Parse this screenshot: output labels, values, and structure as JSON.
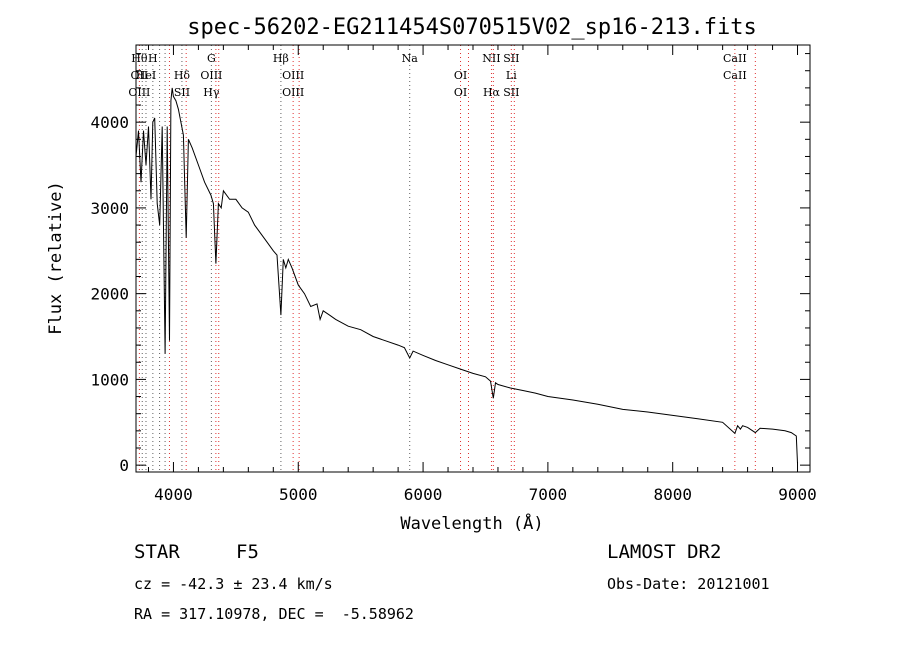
{
  "title": "spec-56202-EG211454S070515V02_sp16-213.fits",
  "footer": {
    "class_label": "STAR",
    "subclass": "F5",
    "survey": "LAMOST DR2",
    "cz": "cz = -42.3 ± 23.4 km/s",
    "obs_date": "Obs-Date: 20121001",
    "radec": "RA = 317.10978, DEC =  -5.58962"
  },
  "chart_data": {
    "type": "line",
    "title": "spec-56202-EG211454S070515V02_sp16-213.fits",
    "xlabel": "Wavelength (Å)",
    "ylabel": "Flux (relative)",
    "xlim": [
      3700,
      9100
    ],
    "ylim": [
      -80,
      4900
    ],
    "xticks": [
      4000,
      5000,
      6000,
      7000,
      8000,
      9000
    ],
    "yticks": [
      0,
      1000,
      2000,
      3000,
      4000
    ],
    "grid": false,
    "legend": "none",
    "colors": {
      "spectrum": "#000000",
      "emission_lines": "#e03030",
      "absorption_lines": "#606060"
    },
    "spectrum": {
      "x": [
        3700,
        3720,
        3740,
        3760,
        3780,
        3800,
        3820,
        3835,
        3850,
        3870,
        3890,
        3910,
        3933,
        3950,
        3968,
        3980,
        3990,
        4000,
        4020,
        4040,
        4060,
        4080,
        4102,
        4120,
        4150,
        4200,
        4250,
        4300,
        4320,
        4340,
        4360,
        4383,
        4400,
        4450,
        4500,
        4550,
        4600,
        4650,
        4700,
        4750,
        4800,
        4830,
        4861,
        4880,
        4900,
        4920,
        4950,
        5000,
        5050,
        5100,
        5150,
        5175,
        5200,
        5250,
        5300,
        5400,
        5500,
        5600,
        5700,
        5800,
        5850,
        5893,
        5920,
        6000,
        6100,
        6200,
        6300,
        6400,
        6500,
        6540,
        6563,
        6580,
        6600,
        6700,
        6800,
        6900,
        7000,
        7200,
        7400,
        7600,
        7800,
        8000,
        8200,
        8400,
        8498,
        8520,
        8542,
        8560,
        8600,
        8662,
        8700,
        8800,
        8900,
        8950,
        8990,
        9000
      ],
      "y": [
        3600,
        3900,
        3300,
        3900,
        3500,
        3950,
        3100,
        4000,
        4050,
        3050,
        2800,
        3950,
        1300,
        3950,
        1450,
        4250,
        4400,
        4300,
        4250,
        4150,
        4000,
        3850,
        2650,
        3800,
        3700,
        3500,
        3300,
        3150,
        3050,
        2350,
        3050,
        3000,
        3200,
        3100,
        3100,
        3000,
        2950,
        2800,
        2700,
        2600,
        2500,
        2450,
        1750,
        2400,
        2300,
        2400,
        2300,
        2100,
        2000,
        1850,
        1880,
        1700,
        1800,
        1750,
        1700,
        1620,
        1580,
        1500,
        1450,
        1400,
        1370,
        1250,
        1330,
        1280,
        1220,
        1170,
        1120,
        1070,
        1030,
        980,
        780,
        960,
        940,
        900,
        870,
        840,
        800,
        760,
        710,
        650,
        620,
        580,
        540,
        500,
        370,
        460,
        420,
        460,
        440,
        380,
        430,
        420,
        400,
        380,
        340,
        20
      ]
    },
    "spectral_lines": [
      {
        "top": "Hθ",
        "mid": "OII",
        "bot": "OIII",
        "wl": 3727
      },
      {
        "top": "",
        "mid": "",
        "bot": "",
        "wl": 3750
      },
      {
        "top": "",
        "mid": "HeI",
        "bot": "",
        "wl": 3780
      },
      {
        "top": "H",
        "mid": "",
        "bot": "",
        "wl": 3835
      },
      {
        "top": "",
        "mid": "",
        "bot": "",
        "wl": 3889
      },
      {
        "top": "",
        "mid": "",
        "bot": "",
        "wl": 3933
      },
      {
        "top": "",
        "mid": "",
        "bot": "",
        "wl": 3968
      },
      {
        "top": "",
        "mid": "Hδ",
        "bot": "SII",
        "wl": 4068
      },
      {
        "top": "",
        "mid": "",
        "bot": "",
        "wl": 4102
      },
      {
        "top": "G",
        "mid": "OIII",
        "bot": "Hγ",
        "wl": 4304
      },
      {
        "top": "",
        "mid": "",
        "bot": "",
        "wl": 4340
      },
      {
        "top": "",
        "mid": "",
        "bot": "",
        "wl": 4363
      },
      {
        "top": "Hβ",
        "mid": "",
        "bot": "",
        "wl": 4861
      },
      {
        "top": "",
        "mid": "OIII",
        "bot": "OIII",
        "wl": 4959
      },
      {
        "top": "",
        "mid": "",
        "bot": "",
        "wl": 5007
      },
      {
        "top": "Na",
        "mid": "",
        "bot": "",
        "wl": 5893
      },
      {
        "top": "",
        "mid": "OI",
        "bot": "OI",
        "wl": 6300
      },
      {
        "top": "",
        "mid": "",
        "bot": "",
        "wl": 6364
      },
      {
        "top": "NII",
        "mid": "",
        "bot": "Hα",
        "wl": 6548
      },
      {
        "top": "",
        "mid": "",
        "bot": "",
        "wl": 6563
      },
      {
        "top": "SII",
        "mid": "Li",
        "bot": "SII",
        "wl": 6707
      },
      {
        "top": "",
        "mid": "",
        "bot": "",
        "wl": 6731
      },
      {
        "top": "CaII",
        "mid": "CaII",
        "bot": "",
        "wl": 8498
      },
      {
        "top": "",
        "mid": "",
        "bot": "",
        "wl": 8662
      }
    ]
  }
}
